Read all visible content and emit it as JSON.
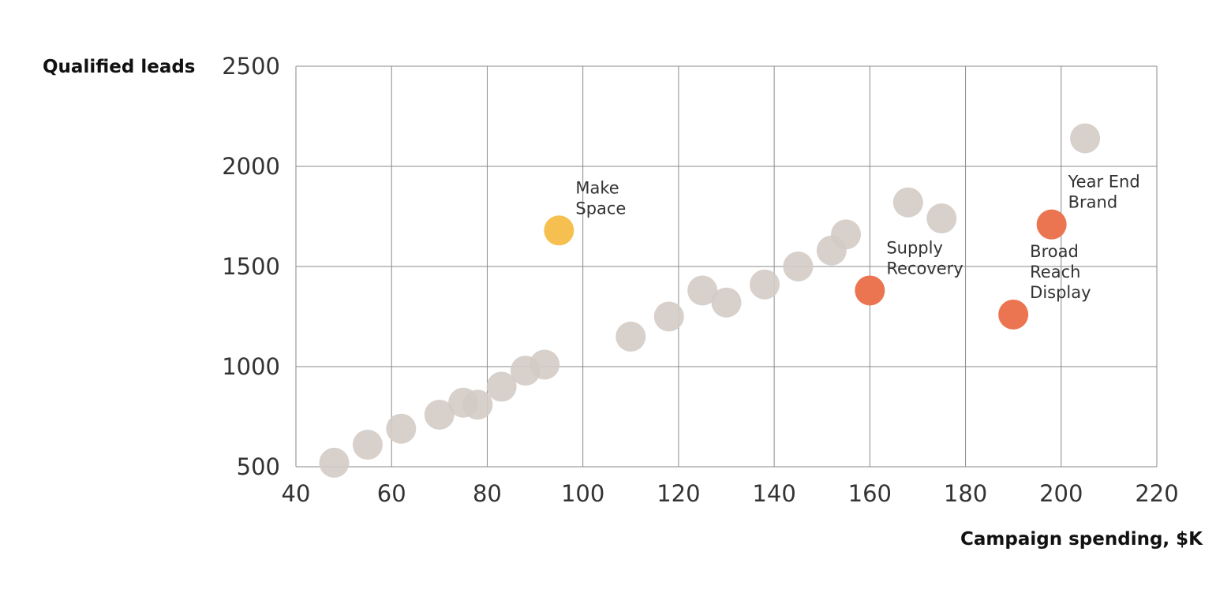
{
  "chart_data": {
    "type": "scatter",
    "xlabel": "Campaign spending, $K",
    "ylabel": "Qualified leads",
    "xlim": [
      40,
      220
    ],
    "ylim": [
      500,
      2500
    ],
    "x_ticks": [
      40,
      60,
      80,
      100,
      120,
      140,
      160,
      180,
      200,
      220
    ],
    "y_ticks": [
      500,
      1000,
      1500,
      2000,
      2500
    ],
    "grid": true,
    "colors": {
      "default": "#d3cbc5",
      "highlight_yellow": "#f5c04f",
      "highlight_orange": "#ea7550"
    },
    "points": [
      {
        "x": 48,
        "y": 520,
        "color": "default"
      },
      {
        "x": 55,
        "y": 610,
        "color": "default"
      },
      {
        "x": 62,
        "y": 690,
        "color": "default"
      },
      {
        "x": 70,
        "y": 760,
        "color": "default"
      },
      {
        "x": 75,
        "y": 820,
        "color": "default"
      },
      {
        "x": 78,
        "y": 810,
        "color": "default"
      },
      {
        "x": 83,
        "y": 900,
        "color": "default"
      },
      {
        "x": 88,
        "y": 980,
        "color": "default"
      },
      {
        "x": 92,
        "y": 1010,
        "color": "default"
      },
      {
        "x": 110,
        "y": 1150,
        "color": "default"
      },
      {
        "x": 118,
        "y": 1250,
        "color": "default"
      },
      {
        "x": 125,
        "y": 1380,
        "color": "default"
      },
      {
        "x": 130,
        "y": 1320,
        "color": "default"
      },
      {
        "x": 138,
        "y": 1410,
        "color": "default"
      },
      {
        "x": 145,
        "y": 1500,
        "color": "default"
      },
      {
        "x": 152,
        "y": 1580,
        "color": "default"
      },
      {
        "x": 155,
        "y": 1660,
        "color": "default"
      },
      {
        "x": 168,
        "y": 1820,
        "color": "default"
      },
      {
        "x": 175,
        "y": 1740,
        "color": "default"
      },
      {
        "x": 205,
        "y": 2140,
        "color": "default"
      },
      {
        "x": 95,
        "y": 1680,
        "color": "highlight_yellow",
        "label": [
          "Make",
          "Space"
        ],
        "label_pos": "upper-right"
      },
      {
        "x": 160,
        "y": 1380,
        "color": "highlight_orange",
        "label": [
          "Supply",
          "Recovery"
        ],
        "label_pos": "upper-right"
      },
      {
        "x": 190,
        "y": 1260,
        "color": "highlight_orange",
        "label": [
          "Broad",
          "Reach",
          "Display"
        ],
        "label_pos": "upper-right"
      },
      {
        "x": 198,
        "y": 1710,
        "color": "highlight_orange",
        "label": [
          "Year End",
          "Brand"
        ],
        "label_pos": "upper-right"
      }
    ]
  }
}
